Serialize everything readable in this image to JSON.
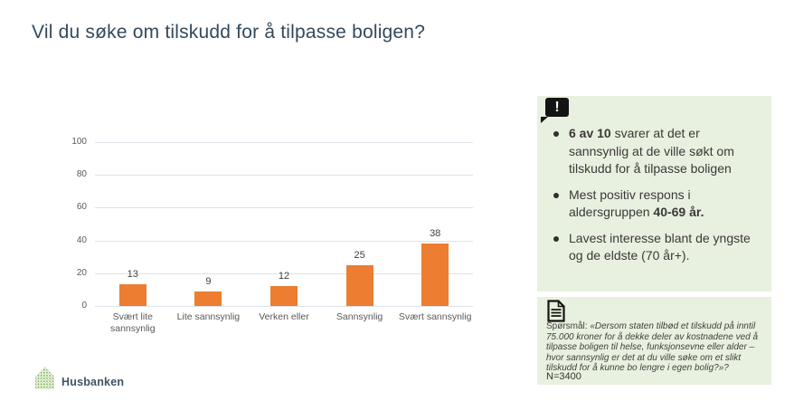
{
  "slide": {
    "title": "Vil du søke om tilskudd for å tilpasse boligen?"
  },
  "colors": {
    "title_text": "#33495c",
    "accent_orange": "#ed7d31",
    "panel_green": "#e8f1df",
    "gridline": "#dde3ea",
    "axis_label": "#595959",
    "bullet_text": "#3b3838",
    "note_text": "#3f3f3f",
    "logo_green": "#86b761",
    "logo_text": "#3e5364"
  },
  "chart_data": {
    "type": "bar",
    "categories": [
      "Svært lite sannsynlig",
      "Lite sannsynlig",
      "Verken eller",
      "Sannsynlig",
      "Svært sannsynlig"
    ],
    "values": [
      13,
      9,
      12,
      25,
      38
    ],
    "title": "",
    "xlabel": "",
    "ylabel": "",
    "ylim": [
      0,
      100
    ],
    "yticks": [
      0,
      20,
      40,
      60,
      80,
      100
    ],
    "grid": true,
    "legend": false,
    "data_labels": true,
    "bar_color": "#ed7d31"
  },
  "insights": {
    "icon": "exclamation-bubble-icon",
    "bullets": [
      {
        "segments": [
          {
            "text": "6 av 10",
            "bold": true
          },
          {
            "text": " svarer at det er sannsynlig at de ville søkt om tilskudd for å tilpasse boligen",
            "bold": false
          }
        ]
      },
      {
        "segments": [
          {
            "text": "Mest positiv respons i aldersgruppen ",
            "bold": false
          },
          {
            "text": "40-69 år.",
            "bold": true
          }
        ]
      },
      {
        "segments": [
          {
            "text": "Lavest interesse blant de yngste og de eldste (70 år+).",
            "bold": false
          }
        ]
      }
    ]
  },
  "source_note": {
    "icon": "document-icon",
    "label": "Spørsmål:",
    "quote": " «Dersom staten tilbød et tilskudd på inntil 75.000 kroner for å dekke deler av kostnadene ved å tilpasse boligen til helse, funksjonsevne eller alder – hvor sannsynlig er det at du ville søke om et slikt tilskudd for å kunne bo lengre i egen bolig?»?",
    "n": "N=3400"
  },
  "footer": {
    "logo_text": "Husbanken"
  }
}
